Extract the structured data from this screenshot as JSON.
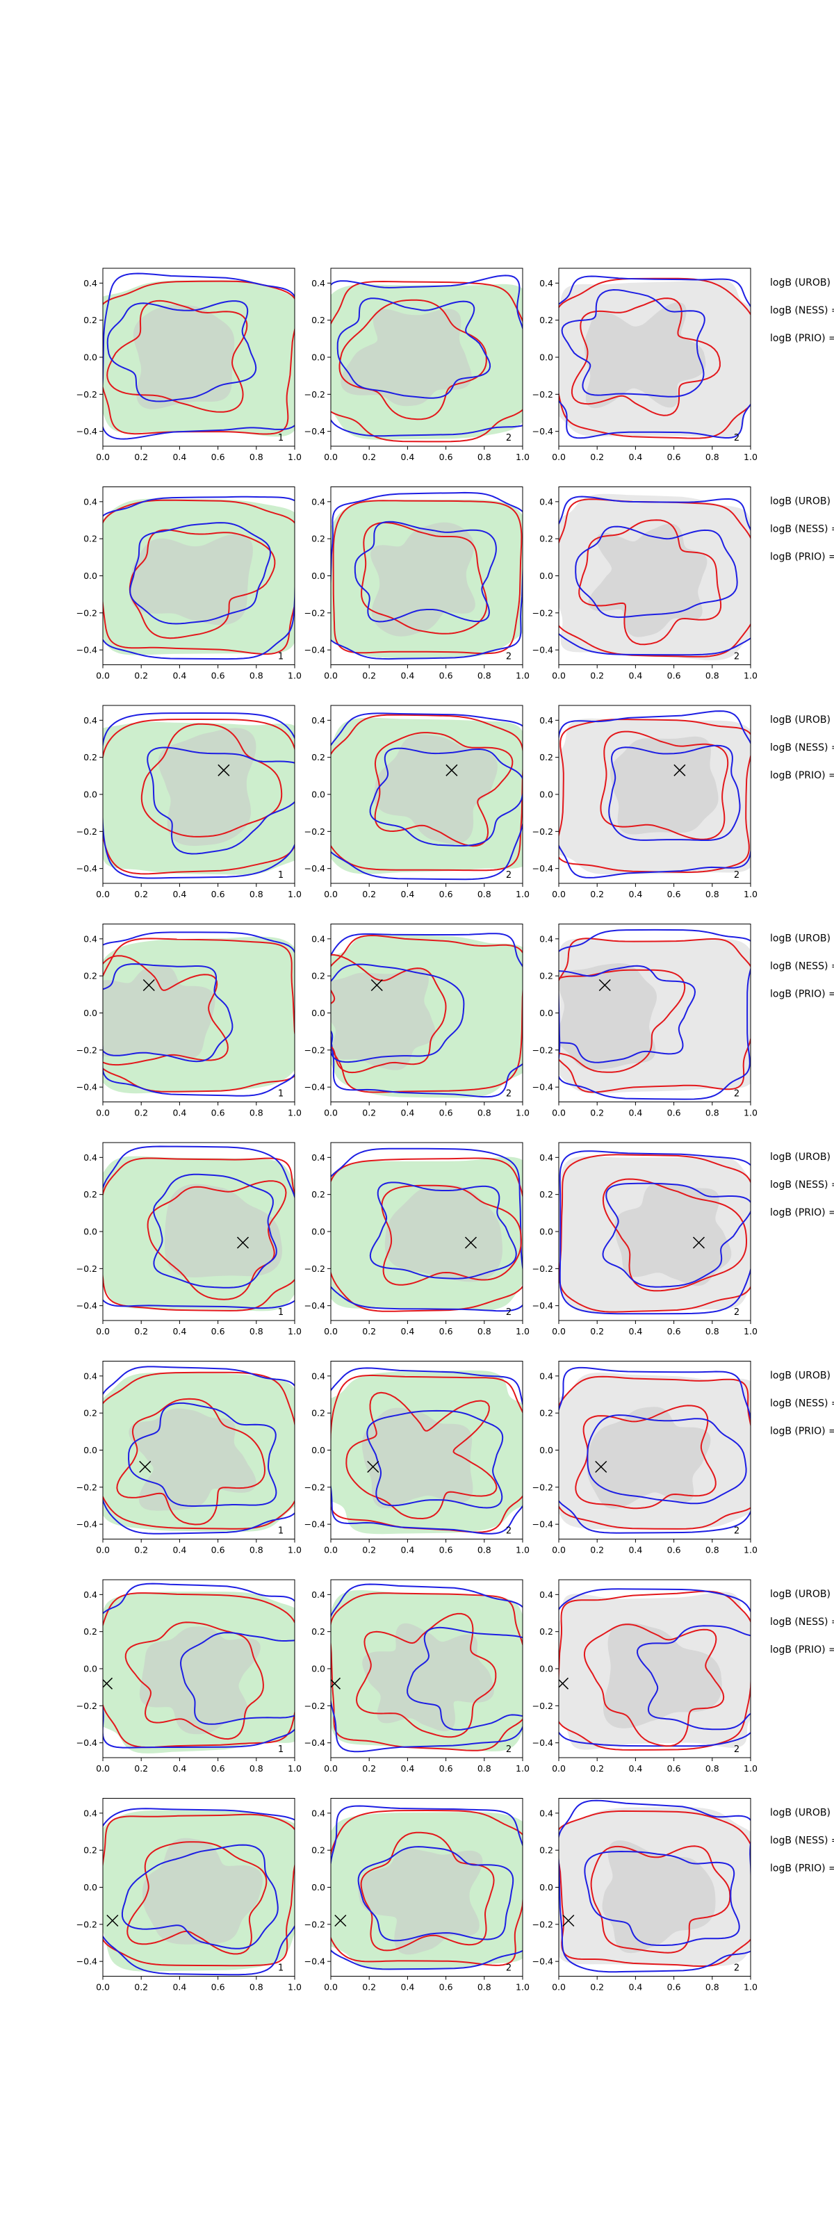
{
  "figure": {
    "rows": 8,
    "columns": 3,
    "legend_labels": [
      "logB (UROB) =",
      "logB (NESS) =",
      "logB (PRIO) ="
    ]
  },
  "chart_data": {
    "type": "contour-grid",
    "title": "",
    "xlabel": "",
    "ylabel": "",
    "xlim": [
      0.0,
      1.0
    ],
    "ylim": [
      -0.48,
      0.48
    ],
    "x_ticks": [
      "0.0",
      "0.2",
      "0.4",
      "0.6",
      "0.8",
      "1.0"
    ],
    "y_ticks": [
      "0.4",
      "0.2",
      "0.0",
      "−0.2",
      "−0.4"
    ],
    "x_tick_values": [
      0.0,
      0.2,
      0.4,
      0.6,
      0.8,
      1.0
    ],
    "y_tick_values": [
      0.4,
      0.2,
      0.0,
      -0.2,
      -0.4
    ],
    "column_fill_colors": [
      "#cdeecd",
      "#cdeecd",
      "#e8e8e8"
    ],
    "inner_fill_color": "#c9c9c9",
    "series_colors": {
      "red": "#e3171b",
      "blue": "#1d1ee3"
    },
    "panels": [
      {
        "row": 1,
        "panel_numbers": [
          "1",
          "2",
          "2"
        ],
        "marker": null
      },
      {
        "row": 2,
        "panel_numbers": [
          "1",
          "2",
          "2"
        ],
        "marker": null
      },
      {
        "row": 3,
        "panel_numbers": [
          "1",
          "2",
          "2"
        ],
        "marker": {
          "x": 0.63,
          "y": 0.13
        }
      },
      {
        "row": 4,
        "panel_numbers": [
          "1",
          "2",
          "2"
        ],
        "marker": {
          "x": 0.24,
          "y": 0.15
        }
      },
      {
        "row": 5,
        "panel_numbers": [
          "1",
          "2",
          "2"
        ],
        "marker": {
          "x": 0.73,
          "y": -0.06
        }
      },
      {
        "row": 6,
        "panel_numbers": [
          "1",
          "2",
          "2"
        ],
        "marker": {
          "x": 0.22,
          "y": -0.09
        }
      },
      {
        "row": 7,
        "panel_numbers": [
          "1",
          "2",
          "2"
        ],
        "marker": {
          "x": 0.02,
          "y": -0.08
        }
      },
      {
        "row": 8,
        "panel_numbers": [
          "1",
          "2",
          "2"
        ],
        "marker": {
          "x": 0.05,
          "y": -0.18
        }
      }
    ]
  }
}
